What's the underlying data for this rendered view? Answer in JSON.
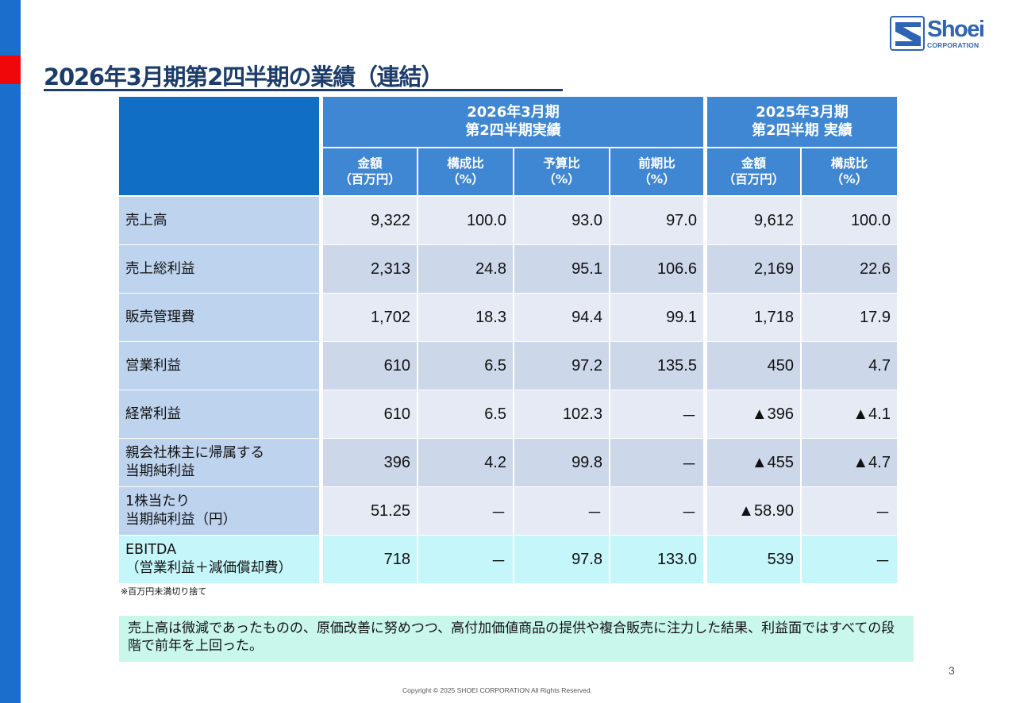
{
  "page": {
    "title": "2026年3月期第2四半期の業績（連結）",
    "page_number": "3",
    "copyright": "Copyright © 2025 SHOEI CORPORATION All Rights Reserved.",
    "footnote": "※百万円未満切り捨て",
    "summary": "売上高は微減であったものの、原価改善に努めつつ、高付加価値商品の提供や複合販売に注力した結果、利益面ではすべての段階で前年を上回った。"
  },
  "logo": {
    "name": "Shoei",
    "sub": "CORPORATION",
    "icon": "shoei-s-mark-icon"
  },
  "colors": {
    "side_bar": "#1a6fcc",
    "side_accent": "#f0070a",
    "title": "#1c3d6b",
    "header": "#3f86d3",
    "corner": "#106fc4",
    "label_bg": "#bed3ee",
    "row_light": "#e5eaf4",
    "row_dark": "#ccd7ea",
    "ebitda_bg": "#c5f6fa",
    "summary_bg": "#c9f7ec"
  },
  "table": {
    "group_current": {
      "line1": "2026年3月期",
      "line2": "第2四半期実績"
    },
    "group_prior": {
      "line1": "2025年3月期",
      "line2": "第2四半期 実績"
    },
    "columns": [
      {
        "line1": "金額",
        "line2": "（百万円）"
      },
      {
        "line1": "構成比",
        "line2": "（%）"
      },
      {
        "line1": "予算比",
        "line2": "（%）"
      },
      {
        "line1": "前期比",
        "line2": "（%）"
      },
      {
        "line1": "金額",
        "line2": "（百万円）"
      },
      {
        "line1": "構成比",
        "line2": "（%）"
      }
    ],
    "rows": [
      {
        "label1": "売上高",
        "label2": "",
        "values": [
          "9,322",
          "100.0",
          "93.0",
          "97.0",
          "9,612",
          "100.0"
        ]
      },
      {
        "label1": "売上総利益",
        "label2": "",
        "values": [
          "2,313",
          "24.8",
          "95.1",
          "106.6",
          "2,169",
          "22.6"
        ]
      },
      {
        "label1": "販売管理費",
        "label2": "",
        "values": [
          "1,702",
          "18.3",
          "94.4",
          "99.1",
          "1,718",
          "17.9"
        ]
      },
      {
        "label1": "営業利益",
        "label2": "",
        "values": [
          "610",
          "6.5",
          "97.2",
          "135.5",
          "450",
          "4.7"
        ]
      },
      {
        "label1": "経常利益",
        "label2": "",
        "values": [
          "610",
          "6.5",
          "102.3",
          "－",
          "▲396",
          "▲4.1"
        ]
      },
      {
        "label1": "親会社株主に帰属する",
        "label2": "当期純利益",
        "values": [
          "396",
          "4.2",
          "99.8",
          "－",
          "▲455",
          "▲4.7"
        ]
      },
      {
        "label1": "1株当たり",
        "label2": "当期純利益（円）",
        "values": [
          "51.25",
          "－",
          "－",
          "－",
          "▲58.90",
          "－"
        ]
      },
      {
        "label1": "EBITDA",
        "label2": "（営業利益＋減価償却費）",
        "values": [
          "718",
          "－",
          "97.8",
          "133.0",
          "539",
          "－"
        ]
      }
    ]
  }
}
